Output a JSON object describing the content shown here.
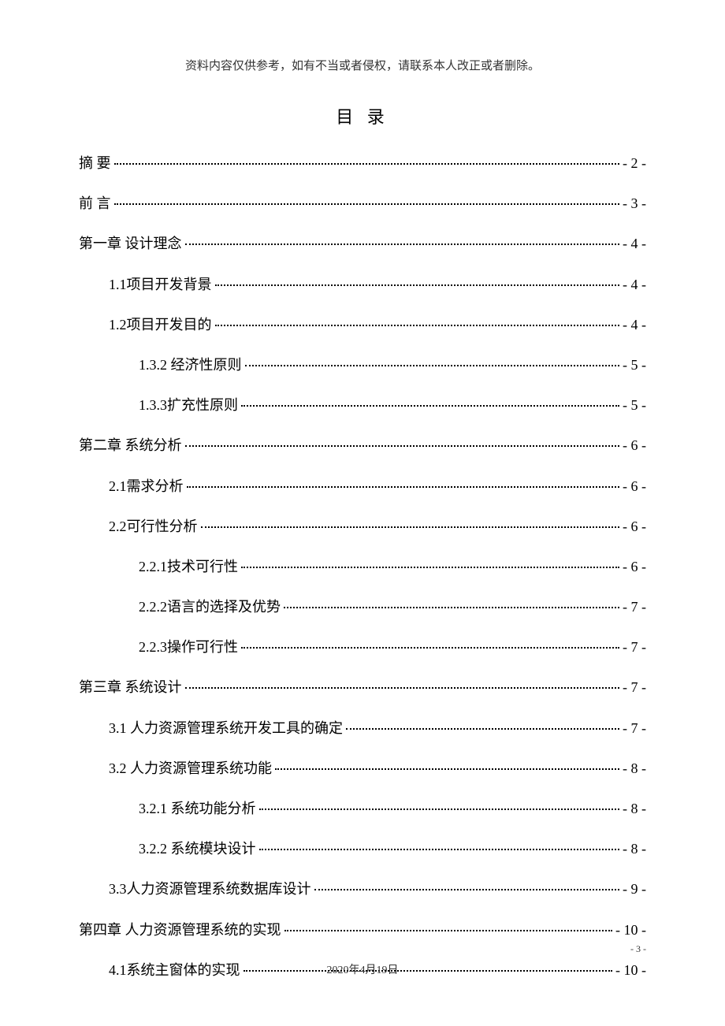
{
  "header_note": "资料内容仅供参考，如有不当或者侵权，请联系本人改正或者删除。",
  "toc_title": "目 录",
  "entries": [
    {
      "level": 1,
      "label": "摘 要",
      "page": "- 2 -"
    },
    {
      "level": 1,
      "label": "前 言",
      "page": "- 3 -"
    },
    {
      "level": 1,
      "label": "第一章 设计理念",
      "page": "- 4 -"
    },
    {
      "level": 2,
      "label": "1.1项目开发背景",
      "page": "- 4 -"
    },
    {
      "level": 2,
      "label": "1.2项目开发目的",
      "page": "- 4 -"
    },
    {
      "level": 3,
      "label": "1.3.2 经济性原则",
      "page": "- 5 -"
    },
    {
      "level": 3,
      "label": "1.3.3扩充性原则",
      "page": "- 5 -"
    },
    {
      "level": 1,
      "label": "第二章 系统分析",
      "page": "- 6 -"
    },
    {
      "level": 2,
      "label": "2.1需求分析",
      "page": "- 6 -"
    },
    {
      "level": 2,
      "label": "2.2可行性分析",
      "page": "- 6 -"
    },
    {
      "level": 3,
      "label": "2.2.1技术可行性",
      "page": "- 6 -"
    },
    {
      "level": 3,
      "label": "2.2.2语言的选择及优势",
      "page": "- 7 -"
    },
    {
      "level": 3,
      "label": "2.2.3操作可行性",
      "page": "- 7 -"
    },
    {
      "level": 1,
      "label": "第三章 系统设计",
      "page": "- 7 -"
    },
    {
      "level": 2,
      "label": "3.1 人力资源管理系统开发工具的确定",
      "page": "- 7 -"
    },
    {
      "level": 2,
      "label": "3.2 人力资源管理系统功能",
      "page": "- 8 -"
    },
    {
      "level": 3,
      "label": "3.2.1 系统功能分析",
      "page": "- 8 -"
    },
    {
      "level": 3,
      "label": "3.2.2 系统模块设计",
      "page": "- 8 -"
    },
    {
      "level": 2,
      "label": "3.3人力资源管理系统数据库设计",
      "page": "- 9 -"
    },
    {
      "level": 1,
      "label": "第四章 人力资源管理系统的实现",
      "page": "- 10 -"
    },
    {
      "level": 2,
      "label": "4.1系统主窗体的实现",
      "page": "- 10 -"
    }
  ],
  "footer_date": "2020年4月19日",
  "page_number": "- 3 -",
  "colors": {
    "background": "#ffffff",
    "text": "#000000",
    "header_text": "#333333"
  },
  "typography": {
    "header_fontsize": 15,
    "title_fontsize": 22,
    "entry_fontsize": 18,
    "footer_fontsize": 14,
    "pagenum_fontsize": 12
  }
}
